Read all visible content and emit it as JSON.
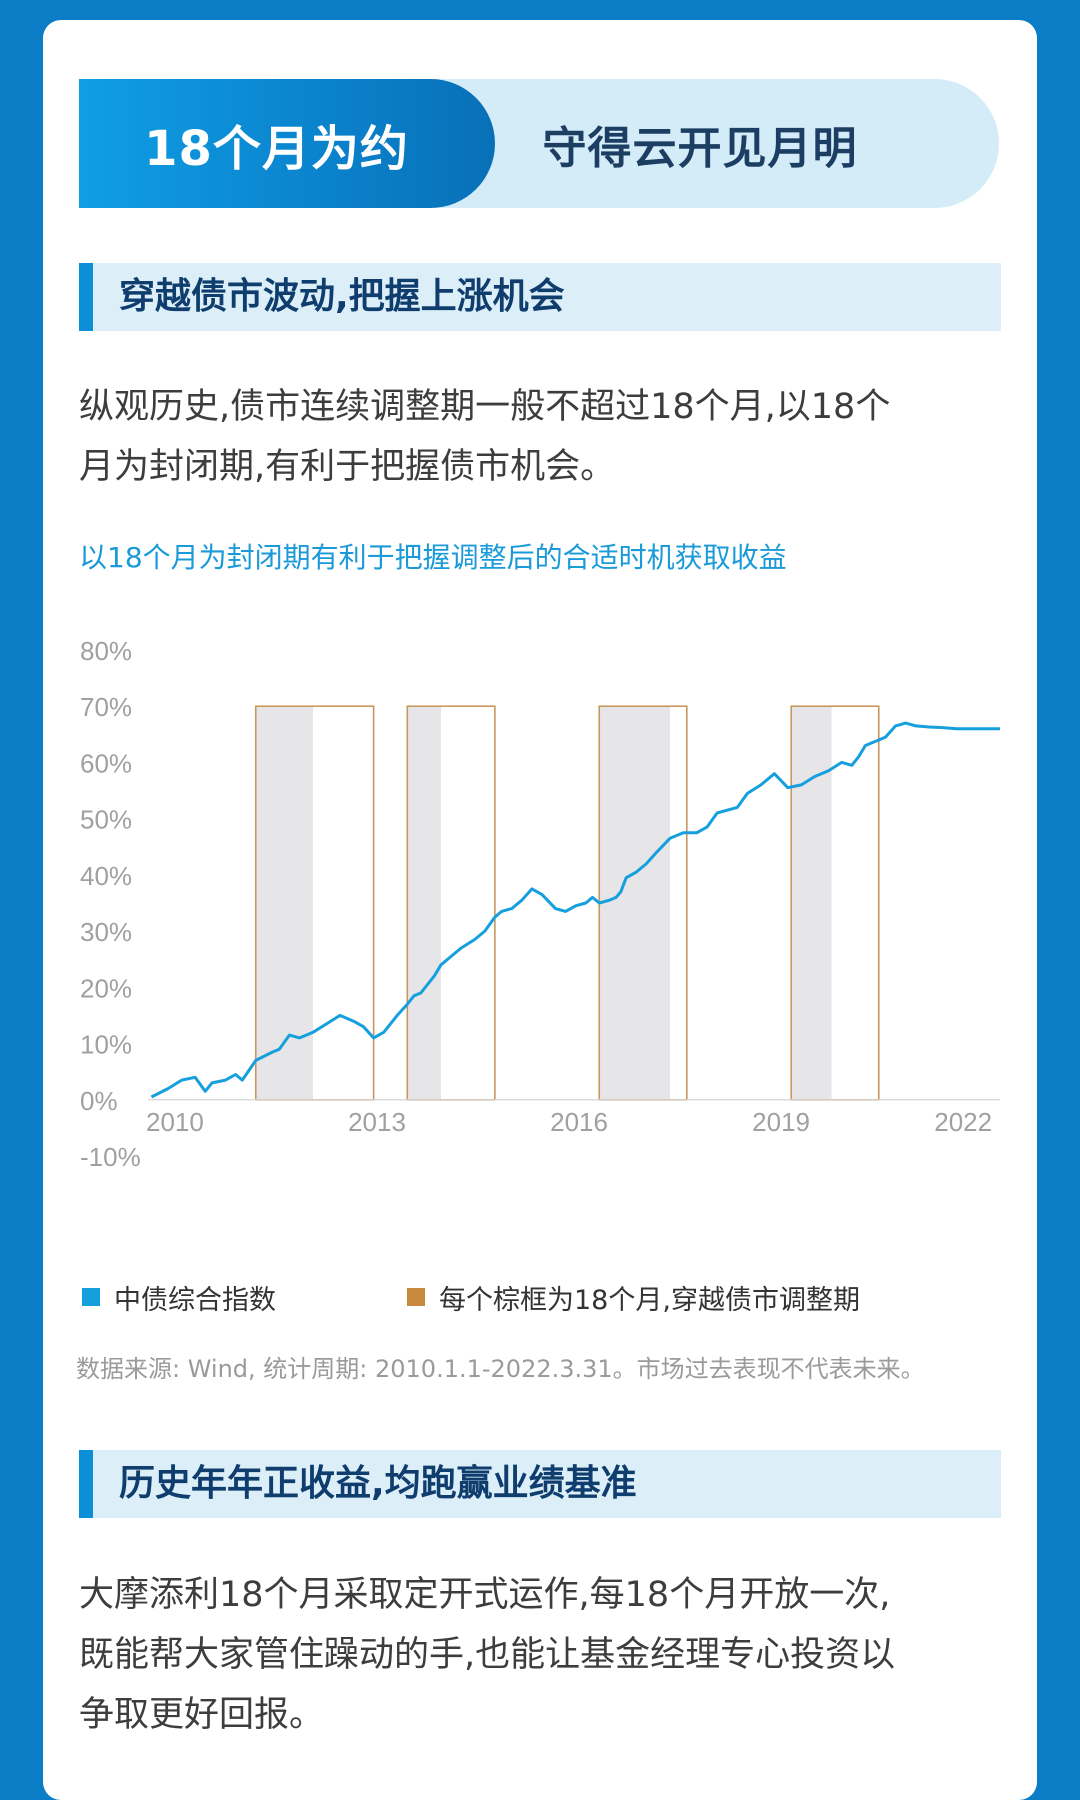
{
  "header": {
    "title": "18个月为约",
    "subtitle": "守得云开见月明"
  },
  "section1": {
    "heading": "穿越债市波动,把握上涨机会",
    "paragraph_line1": "纵观历史,债市连续调整期一般不超过18个月,以18个",
    "paragraph_line2": "月为封闭期,有利于把握债市机会。"
  },
  "chart_title": "以18个月为封闭期有利于把握调整后的合适时机获取收益",
  "legend": {
    "series": "中债综合指数",
    "boxes": "每个棕框为18个月,穿越债市调整期"
  },
  "source": "数据来源: Wind, 统计周期: 2010.1.1-2022.3.31。市场过去表现不代表未来。",
  "section2": {
    "heading": "历史年年正收益,均跑赢业绩基准",
    "paragraph_line1": "大摩添利18个月采取定开式运作,每18个月开放一次,",
    "paragraph_line2": "既能帮大家管住躁动的手,也能让基金经理专心投资以",
    "paragraph_line3": "争取更好回报。"
  },
  "colors": {
    "line": "#159fdd",
    "box": "#c89760",
    "shade": "#e6e6e8",
    "accent": "#0b8fd8",
    "legend_box": "#c88a3a"
  },
  "chart_data": {
    "type": "line",
    "title": "以18个月为封闭期有利于把握调整后的合适时机获取收益",
    "xlabel": "",
    "ylabel": "",
    "ylim": [
      -10,
      80
    ],
    "y_ticks": [
      "80%",
      "70%",
      "60%",
      "50%",
      "40%",
      "30%",
      "20%",
      "10%",
      "0%",
      "-10%"
    ],
    "x_ticks": [
      "2010",
      "2013",
      "2016",
      "2019",
      "2022"
    ],
    "xlim": [
      2009.6,
      2022.25
    ],
    "series": [
      {
        "name": "中债综合指数",
        "x": [
          2009.65,
          2009.9,
          2010.1,
          2010.3,
          2010.45,
          2010.55,
          2010.75,
          2010.9,
          2011.0,
          2011.2,
          2011.45,
          2011.55,
          2011.7,
          2011.85,
          2011.95,
          2012.05,
          2012.25,
          2012.45,
          2012.65,
          2012.8,
          2012.95,
          2013.1,
          2013.3,
          2013.45,
          2013.55,
          2013.65,
          2013.75,
          2013.85,
          2013.95,
          2014.1,
          2014.25,
          2014.45,
          2014.6,
          2014.75,
          2014.85,
          2015.0,
          2015.15,
          2015.3,
          2015.45,
          2015.65,
          2015.8,
          2015.95,
          2016.1,
          2016.2,
          2016.3,
          2016.45,
          2016.55,
          2016.62,
          2016.7,
          2016.85,
          2017.0,
          2017.15,
          2017.35,
          2017.55,
          2017.75,
          2017.9,
          2018.05,
          2018.2,
          2018.35,
          2018.5,
          2018.7,
          2018.9,
          2019.1,
          2019.3,
          2019.5,
          2019.7,
          2019.9,
          2020.05,
          2020.15,
          2020.25,
          2020.35,
          2020.45,
          2020.55,
          2020.7,
          2020.85,
          2021.0,
          2021.2,
          2021.4,
          2021.6,
          2021.8,
          2022.0,
          2022.1,
          2022.25
        ],
        "values": [
          0.5,
          2.0,
          3.5,
          4.0,
          1.5,
          3.0,
          3.5,
          4.5,
          3.5,
          7.0,
          8.5,
          9.0,
          11.5,
          11.0,
          11.5,
          12.0,
          13.5,
          15.0,
          14.0,
          13.0,
          11.0,
          12.0,
          15.0,
          17.0,
          18.5,
          19.0,
          20.5,
          22.0,
          24.0,
          25.5,
          27.0,
          28.5,
          30.0,
          32.5,
          33.5,
          34.0,
          35.5,
          37.5,
          36.5,
          34.0,
          33.5,
          34.5,
          35.0,
          36.0,
          35.0,
          35.5,
          36.0,
          37.0,
          39.5,
          40.5,
          42.0,
          44.0,
          46.5,
          47.5,
          47.5,
          48.5,
          51.0,
          51.5,
          52.0,
          54.5,
          56.0,
          58.0,
          55.5,
          56.0,
          57.5,
          58.5,
          60.0,
          59.5,
          61.0,
          63.0,
          63.5,
          64.0,
          64.5,
          66.5,
          67.0,
          66.5,
          66.3,
          66.2,
          66.0,
          66.0,
          66.0,
          66.0,
          66.0
        ]
      }
    ],
    "adjustment_periods": [
      {
        "start": 2011.2,
        "shade_end": 2012.05,
        "box_end": 2012.95
      },
      {
        "start": 2013.45,
        "shade_end": 2013.95,
        "box_end": 2014.75
      },
      {
        "start": 2016.3,
        "shade_end": 2017.35,
        "box_end": 2017.6
      },
      {
        "start": 2019.15,
        "shade_end": 2019.75,
        "box_end": 2020.45
      }
    ],
    "grid": false,
    "legend_position": "bottom"
  }
}
